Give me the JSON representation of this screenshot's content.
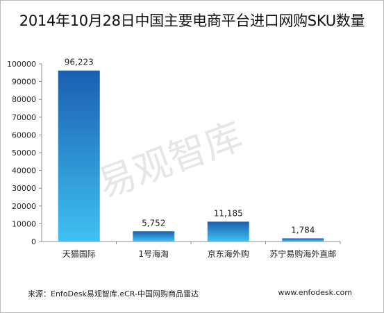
{
  "title": "2014年10月28日中国主要电商平台进口网购SKU数量",
  "watermark": "易观智库",
  "source": "来源：EnfoDesk易观智库.eCR-中国网购商品雷达",
  "website": "www.enfodesk.com",
  "colors": {
    "bar_top": "#1a5fb0",
    "bar_bottom": "#3fc1f2",
    "axis": "#8c8c8c",
    "text": "#222222",
    "watermark": "#e6e6e6"
  },
  "chart_data": {
    "type": "bar",
    "categories": [
      "天猫国际",
      "1号海淘",
      "京东海外购",
      "苏宁易购海外直邮"
    ],
    "values": [
      96223,
      5752,
      11185,
      1784
    ],
    "data_labels": [
      "96,223",
      "5,752",
      "11,185",
      "1,784"
    ],
    "title": "2014年10月28日中国主要电商平台进口网购SKU数量",
    "xlabel": "",
    "ylabel": "",
    "ylim": [
      0,
      100000
    ],
    "yticks": [
      0,
      10000,
      20000,
      30000,
      40000,
      50000,
      60000,
      70000,
      80000,
      90000,
      100000
    ],
    "ytick_labels": [
      "0",
      "10000",
      "20000",
      "30000",
      "40000",
      "50000",
      "60000",
      "70000",
      "80000",
      "90000",
      "100000"
    ],
    "grid": false,
    "legend": "none"
  }
}
